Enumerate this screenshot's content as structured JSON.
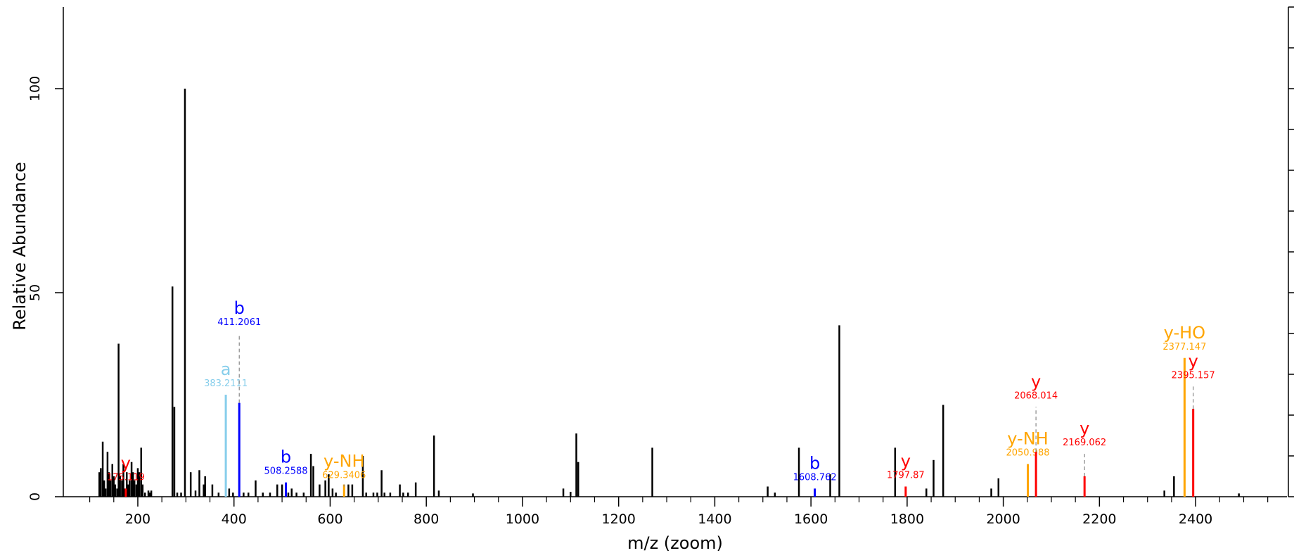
{
  "chart_data": {
    "type": "bar",
    "xlabel": "m/z (zoom)",
    "ylabel": "Relative Abundance",
    "xlim": [
      45,
      2590
    ],
    "ylim": [
      0,
      120
    ],
    "x_ticks": [
      200,
      400,
      600,
      800,
      1000,
      1200,
      1400,
      1600,
      1800,
      2000,
      2200,
      2400
    ],
    "x_tick_labels": [
      "200",
      "400",
      "600",
      "800",
      "1000",
      "1200",
      "1400",
      "1600",
      "1800",
      "2000",
      "2200",
      "2400"
    ],
    "y_ticks": [
      0,
      50,
      100
    ],
    "y_tick_labels": [
      "0",
      "50",
      "100"
    ],
    "colors": {
      "unannotated": "#000000",
      "b": "#0000ff",
      "a": "#87ceeb",
      "y": "#ff0000",
      "y-NH": "#ffa500",
      "y-HO": "#ffa500",
      "connector": "#888888"
    },
    "series": [
      {
        "values": [
          [
            120,
            6
          ],
          [
            123,
            7
          ],
          [
            127,
            13.5
          ],
          [
            130,
            4
          ],
          [
            133,
            2
          ],
          [
            137,
            11
          ],
          [
            140,
            6
          ],
          [
            143,
            4
          ],
          [
            147,
            8
          ],
          [
            150,
            5
          ],
          [
            153,
            3
          ],
          [
            157,
            2
          ],
          [
            160,
            37.5
          ],
          [
            163,
            5
          ],
          [
            167,
            4
          ],
          [
            170,
            8
          ],
          [
            173,
            2
          ],
          [
            177,
            6
          ],
          [
            180,
            3
          ],
          [
            183,
            4
          ],
          [
            187,
            8.5
          ],
          [
            190,
            6
          ],
          [
            193,
            4
          ],
          [
            197,
            3
          ],
          [
            200,
            7
          ],
          [
            203,
            6
          ],
          [
            207,
            12
          ],
          [
            210,
            3
          ],
          [
            215,
            1
          ],
          [
            222,
            1.5
          ],
          [
            225,
            1
          ],
          [
            228,
            1.5
          ],
          [
            272,
            51.5
          ],
          [
            276,
            22
          ],
          [
            282,
            1
          ],
          [
            290,
            1
          ],
          [
            298,
            100
          ],
          [
            310,
            6
          ],
          [
            320,
            1.5
          ],
          [
            328,
            6.5
          ],
          [
            337,
            3
          ],
          [
            340,
            5
          ],
          [
            355,
            3
          ],
          [
            368,
            1
          ],
          [
            390,
            2
          ],
          [
            398,
            1
          ],
          [
            420,
            1
          ],
          [
            430,
            1
          ],
          [
            445,
            4
          ],
          [
            460,
            1
          ],
          [
            475,
            1
          ],
          [
            490,
            3
          ],
          [
            500,
            3
          ],
          [
            513,
            1
          ],
          [
            520,
            2
          ],
          [
            530,
            1
          ],
          [
            545,
            1
          ],
          [
            560,
            10.5
          ],
          [
            565,
            7.5
          ],
          [
            578,
            3
          ],
          [
            590,
            4
          ],
          [
            597,
            5.5
          ],
          [
            605,
            2
          ],
          [
            612,
            1
          ],
          [
            638,
            3
          ],
          [
            646,
            3
          ],
          [
            668,
            10
          ],
          [
            675,
            1
          ],
          [
            690,
            1
          ],
          [
            698,
            1
          ],
          [
            707,
            6.5
          ],
          [
            713,
            1
          ],
          [
            725,
            1
          ],
          [
            745,
            3
          ],
          [
            752,
            1
          ],
          [
            762,
            1
          ],
          [
            778,
            3.5
          ],
          [
            816,
            15
          ],
          [
            826,
            1.5
          ],
          [
            897,
            0.8
          ],
          [
            1085,
            2
          ],
          [
            1100,
            1.2
          ],
          [
            1112,
            15.5
          ],
          [
            1116,
            8.5
          ],
          [
            1270,
            12
          ],
          [
            1510,
            2.5
          ],
          [
            1525,
            1
          ],
          [
            1575,
            12
          ],
          [
            1640,
            5.5
          ],
          [
            1659,
            42
          ],
          [
            1775,
            12
          ],
          [
            1840,
            2
          ],
          [
            1855,
            9
          ],
          [
            1875,
            22.5
          ],
          [
            1975,
            2
          ],
          [
            1990,
            4.5
          ],
          [
            2335,
            1.5
          ],
          [
            2355,
            5
          ],
          [
            2395,
            21.5
          ],
          [
            2490,
            0.8
          ]
        ]
      }
    ],
    "annotations": [
      {
        "ion": "y",
        "mz_label": "175.119",
        "x": 175,
        "y": 2,
        "color": "#ff0000",
        "connector": false
      },
      {
        "ion": "a",
        "mz_label": "383.2111",
        "x": 383,
        "y": 25,
        "color": "#87ceeb",
        "connector": false
      },
      {
        "ion": "b",
        "mz_label": "411.2061",
        "x": 411,
        "y": 23,
        "color": "#0000ff",
        "connector": true,
        "label_y": 40
      },
      {
        "ion": "b",
        "mz_label": "508.2588",
        "x": 508,
        "y": 3.5,
        "color": "#0000ff",
        "connector": false
      },
      {
        "ion": "y-NH",
        "mz_label": "629.3406",
        "x": 629,
        "y": 3,
        "color": "#ffa500",
        "connector": true,
        "label_y": 2.5
      },
      {
        "ion": "b",
        "mz_label": "1608.762",
        "x": 1608,
        "y": 2,
        "color": "#0000ff",
        "connector": false
      },
      {
        "ion": "y",
        "mz_label": "1797.87",
        "x": 1797,
        "y": 2.5,
        "color": "#ff0000",
        "connector": false
      },
      {
        "ion": "y-NH",
        "mz_label": "2050.988",
        "x": 2051,
        "y": 8,
        "color": "#ffa500",
        "connector": false
      },
      {
        "ion": "y",
        "mz_label": "2068.014",
        "x": 2068,
        "y": 11,
        "color": "#ff0000",
        "connector": true,
        "label_y": 22
      },
      {
        "ion": "y",
        "mz_label": "2169.062",
        "x": 2169,
        "y": 5,
        "color": "#ff0000",
        "connector": true,
        "label_y": 10.5
      },
      {
        "ion": "y-HO",
        "mz_label": "2377.147",
        "x": 2377,
        "y": 34,
        "color": "#ffa500",
        "connector": false
      },
      {
        "ion": "y",
        "mz_label": "2395.157",
        "x": 2395,
        "y": 21.5,
        "color": "#ff0000",
        "connector": true,
        "label_y": 27
      }
    ]
  }
}
